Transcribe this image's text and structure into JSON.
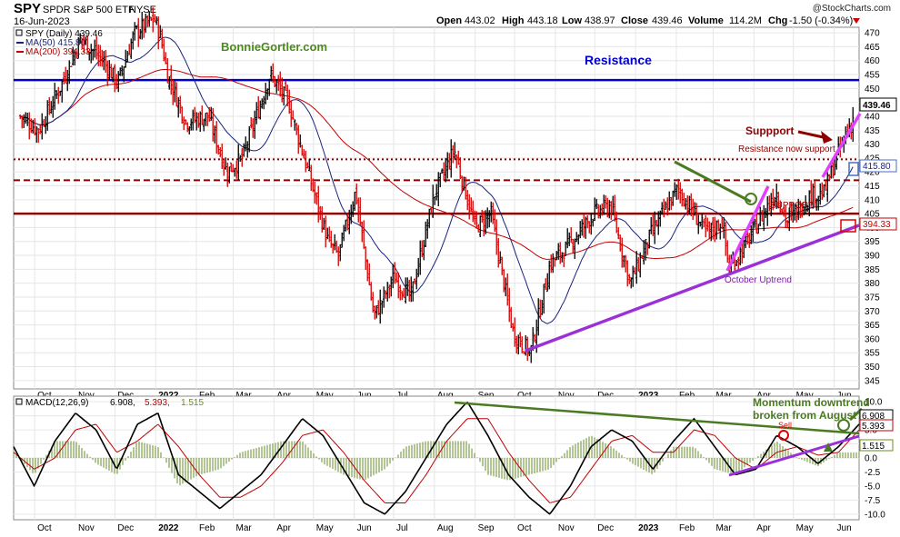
{
  "header": {
    "symbol": "SPY",
    "name": "SPDR S&P 500 ETF",
    "exchange": "NYSE",
    "date": "16-Jun-2023",
    "watermark": "@StockCharts.com",
    "quote": {
      "open_label": "Open",
      "open": "443.02",
      "high_label": "High",
      "high": "443.18",
      "low_label": "Low",
      "low": "438.97",
      "close_label": "Close",
      "close": "439.46",
      "volume_label": "Volume",
      "volume": "114.2M",
      "chg_label": "Chg",
      "chg": "-1.50 (-0.34%)"
    }
  },
  "chart_data": [
    {
      "type": "candlestick",
      "panel": "price",
      "legend": [
        {
          "text": "SPY (Daily) 439.46",
          "color": "#000000"
        },
        {
          "text": "MA(50) 415.80",
          "color": "#1a237e"
        },
        {
          "text": "MA(200) 394.33",
          "color": "#c00000"
        }
      ],
      "x_tick_labels": [
        "Oct",
        "Nov",
        "Dec",
        "2022",
        "Feb",
        "Mar",
        "Apr",
        "May",
        "Jun",
        "Jul",
        "Aug",
        "Sep",
        "Oct",
        "Nov",
        "Dec",
        "2023",
        "Feb",
        "Mar",
        "Apr",
        "May",
        "Jun"
      ],
      "ylim": [
        342,
        472
      ],
      "y_ticks": [
        345,
        350,
        355,
        360,
        365,
        370,
        375,
        380,
        385,
        390,
        395,
        400,
        405,
        410,
        415,
        420,
        425,
        430,
        435,
        440,
        445,
        450,
        455,
        460,
        465,
        470
      ],
      "series": [
        {
          "name": "SPY",
          "color": "#000000",
          "down_color": "#cc0000",
          "x": [
            "2021-09-20",
            "2021-10-04",
            "2021-10-20",
            "2021-11-05",
            "2021-11-22",
            "2021-12-03",
            "2021-12-16",
            "2021-12-31",
            "2022-01-05",
            "2022-01-10",
            "2022-01-24",
            "2022-02-10",
            "2022-02-24",
            "2022-03-08",
            "2022-03-29",
            "2022-04-12",
            "2022-04-27",
            "2022-05-12",
            "2022-05-20",
            "2022-06-02",
            "2022-06-16",
            "2022-07-01",
            "2022-07-14",
            "2022-08-01",
            "2022-08-16",
            "2022-09-01",
            "2022-09-13",
            "2022-09-30",
            "2022-10-13",
            "2022-10-28",
            "2022-11-10",
            "2022-11-30",
            "2022-12-13",
            "2022-12-28",
            "2023-01-13",
            "2023-02-02",
            "2023-02-24",
            "2023-03-08",
            "2023-03-13",
            "2023-03-27",
            "2023-04-18",
            "2023-04-26",
            "2023-05-15",
            "2023-05-24",
            "2023-06-05",
            "2023-06-16"
          ],
          "close": [
            440,
            435,
            450,
            468,
            460,
            452,
            470,
            475,
            468,
            455,
            438,
            440,
            420,
            425,
            455,
            445,
            420,
            395,
            390,
            413,
            368,
            382,
            375,
            412,
            428,
            400,
            405,
            362,
            355,
            387,
            393,
            405,
            408,
            380,
            398,
            414,
            398,
            402,
            385,
            395,
            413,
            402,
            412,
            412,
            428,
            440
          ]
        }
      ],
      "ma50": {
        "name": "MA(50)",
        "value": "415.80",
        "color": "#1a237e"
      },
      "ma200": {
        "name": "MA(200)",
        "value": "394.33",
        "color": "#c00000"
      },
      "horizontal_lines": [
        {
          "price": 453,
          "color": "#0000cc",
          "style": "solid",
          "label": "Resistance"
        },
        {
          "price": 424.5,
          "color": "#8b0000",
          "style": "dotted",
          "label": "Resistance now support"
        },
        {
          "price": 417,
          "color": "#8b0000",
          "style": "dashed"
        },
        {
          "price": 405,
          "color": "#8b0000",
          "style": "solid",
          "label": "SUPPORT"
        }
      ],
      "annotations": [
        "BonnieGortler.com",
        "Suppport",
        "October Uptrend"
      ]
    },
    {
      "type": "line",
      "panel": "macd",
      "legend": "MACD(12,26,9) 6.908, 5.393, 1.515",
      "legend_parts": [
        "MACD(12,26,9)",
        "6.908,",
        "5.393,",
        "1.515"
      ],
      "ylim": [
        -11,
        11
      ],
      "y_ticks": [
        -10.0,
        -7.5,
        -5.0,
        -2.5,
        0.0,
        2.5,
        5.0,
        7.5,
        10.0
      ],
      "y_tick_labels": [
        "-10.0",
        "-7.5",
        "-5.0",
        "-2.5",
        "0.0",
        "2.5",
        "5.0",
        "7.5",
        "10.0"
      ],
      "x_tick_labels": [
        "Oct",
        "Nov",
        "Dec",
        "2022",
        "Feb",
        "Mar",
        "Apr",
        "May",
        "Jun",
        "Jul",
        "Aug",
        "Sep",
        "Oct",
        "Nov",
        "Dec",
        "2023",
        "Feb",
        "Mar",
        "Apr",
        "May",
        "Jun"
      ],
      "series": [
        {
          "name": "MACD",
          "color": "#000000",
          "value": "6.908"
        },
        {
          "name": "Signal",
          "color": "#c00000",
          "value": "5.393"
        },
        {
          "name": "Histogram",
          "color": "#6b8e23",
          "value": "1.515"
        }
      ],
      "macd_points": [
        [
          0,
          2
        ],
        [
          4,
          -5
        ],
        [
          8,
          3
        ],
        [
          12,
          8
        ],
        [
          16,
          5
        ],
        [
          20,
          -2
        ],
        [
          24,
          6
        ],
        [
          28,
          8
        ],
        [
          32,
          -3
        ],
        [
          36,
          -6
        ],
        [
          40,
          -9
        ],
        [
          44,
          -6
        ],
        [
          48,
          -3
        ],
        [
          52,
          2
        ],
        [
          56,
          7
        ],
        [
          60,
          4
        ],
        [
          64,
          -2
        ],
        [
          68,
          -8
        ],
        [
          72,
          -10
        ],
        [
          76,
          -6
        ],
        [
          80,
          0
        ],
        [
          84,
          6
        ],
        [
          88,
          10
        ],
        [
          92,
          4
        ],
        [
          96,
          -3
        ],
        [
          100,
          -7
        ],
        [
          104,
          -10
        ],
        [
          108,
          -5
        ],
        [
          112,
          2
        ],
        [
          116,
          5
        ],
        [
          120,
          3
        ],
        [
          124,
          -2
        ],
        [
          128,
          3
        ],
        [
          132,
          7
        ],
        [
          136,
          2
        ],
        [
          140,
          -3
        ],
        [
          144,
          -2
        ],
        [
          148,
          4
        ],
        [
          152,
          2
        ],
        [
          156,
          -1
        ],
        [
          160,
          2
        ],
        [
          164,
          6
        ]
      ],
      "signal_points": [
        [
          0,
          1
        ],
        [
          4,
          -2
        ],
        [
          8,
          0
        ],
        [
          12,
          5
        ],
        [
          16,
          6
        ],
        [
          20,
          1
        ],
        [
          24,
          3
        ],
        [
          28,
          6
        ],
        [
          32,
          2
        ],
        [
          36,
          -3
        ],
        [
          40,
          -7
        ],
        [
          44,
          -7
        ],
        [
          48,
          -5
        ],
        [
          52,
          -1
        ],
        [
          56,
          4
        ],
        [
          60,
          5
        ],
        [
          64,
          1
        ],
        [
          68,
          -4
        ],
        [
          72,
          -8
        ],
        [
          76,
          -8
        ],
        [
          80,
          -3
        ],
        [
          84,
          3
        ],
        [
          88,
          7
        ],
        [
          92,
          7
        ],
        [
          96,
          1
        ],
        [
          100,
          -4
        ],
        [
          104,
          -8
        ],
        [
          108,
          -7
        ],
        [
          112,
          -2
        ],
        [
          116,
          3
        ],
        [
          120,
          4
        ],
        [
          124,
          1
        ],
        [
          128,
          1
        ],
        [
          132,
          5
        ],
        [
          136,
          4
        ],
        [
          140,
          0
        ],
        [
          144,
          -2
        ],
        [
          148,
          1
        ],
        [
          152,
          2
        ],
        [
          156,
          0.5
        ],
        [
          160,
          1
        ],
        [
          164,
          5
        ]
      ],
      "current_values": {
        "macd": "6.908",
        "signal": "5.393",
        "histogram": "1.515"
      },
      "annotations": [
        "Momentum downtrend",
        "broken from August",
        "Sell"
      ]
    }
  ],
  "colors": {
    "up_bar": "#000000",
    "down_bar": "#cc0000",
    "resistance": "#0000cc",
    "support": "#8b0000",
    "uptrend": "#9b30d9",
    "downtrend": "#4a7a22",
    "watermark_text": "#4a8a1e",
    "ma200_tag": "#e00000",
    "ma50_tag": "#4a6fc4"
  }
}
